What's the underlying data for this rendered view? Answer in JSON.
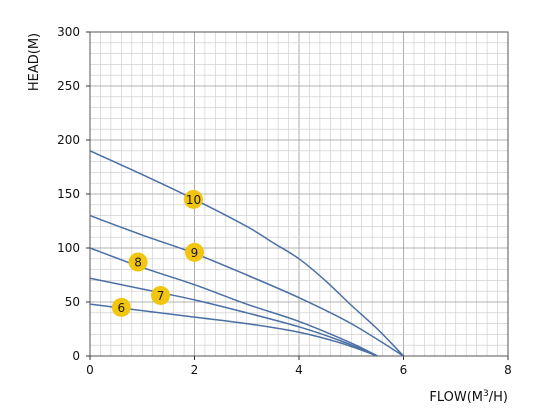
{
  "chart_data": {
    "type": "line",
    "title": "",
    "xlabel": "FLOW(M³/H)",
    "ylabel": "HEAD(M)",
    "xlim": [
      0,
      8
    ],
    "ylim": [
      0,
      300
    ],
    "x_ticks": [
      "0",
      "2",
      "4",
      "6",
      "8"
    ],
    "y_ticks": [
      "0",
      "50",
      "100",
      "150",
      "200",
      "250",
      "300"
    ],
    "grid": true,
    "line_color": "#4a6fa5",
    "badge_color": "#f2c511",
    "series": [
      {
        "name": "6",
        "x": [
          0,
          1,
          2,
          3,
          4,
          4.8,
          5.5
        ],
        "y": [
          48,
          42,
          36,
          30,
          22,
          12,
          0
        ],
        "label_at": [
          0.6,
          45
        ]
      },
      {
        "name": "7",
        "x": [
          0,
          1,
          2,
          3,
          4,
          4.8,
          5.5
        ],
        "y": [
          72,
          62,
          52,
          40,
          27,
          14,
          0
        ],
        "label_at": [
          1.35,
          56
        ]
      },
      {
        "name": "8",
        "x": [
          0,
          1,
          2,
          3,
          4,
          5,
          5.5
        ],
        "y": [
          100,
          82,
          66,
          48,
          32,
          12,
          0
        ],
        "label_at": [
          0.92,
          87
        ]
      },
      {
        "name": "9",
        "x": [
          0,
          1,
          2,
          3,
          4,
          5,
          6
        ],
        "y": [
          130,
          112,
          95,
          75,
          54,
          30,
          0
        ],
        "label_at": [
          2.0,
          96
        ]
      },
      {
        "name": "10",
        "x": [
          0,
          1,
          2,
          3,
          3.5,
          4,
          4.5,
          5,
          5.5,
          6
        ],
        "y": [
          190,
          168,
          145,
          120,
          105,
          90,
          70,
          47,
          25,
          0
        ],
        "label_at": [
          1.98,
          145
        ]
      }
    ]
  }
}
